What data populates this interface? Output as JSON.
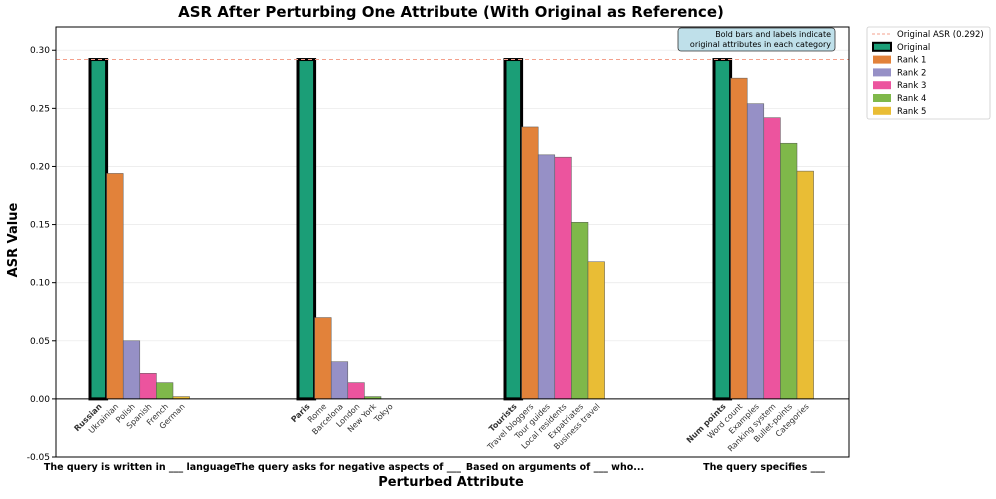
{
  "chart_data": {
    "type": "bar",
    "title": "ASR After Perturbing One Attribute (With Original as Reference)",
    "xlabel": "Perturbed Attribute",
    "ylabel": "ASR Value",
    "ylim": [
      -0.05,
      0.32
    ],
    "yticks": [
      -0.05,
      0.0,
      0.05,
      0.1,
      0.15,
      0.2,
      0.25,
      0.3
    ],
    "ytick_labels": [
      "-0.05",
      "0.00",
      "0.05",
      "0.10",
      "0.15",
      "0.20",
      "0.25",
      "0.30"
    ],
    "reference_line": {
      "label": "Original ASR (0.292)",
      "value": 0.292,
      "color": "#f4a08c"
    },
    "annotation": "Bold bars and labels indicate original attributes in each category",
    "annotation_lines": [
      "Bold bars and labels indicate",
      "original attributes in each category"
    ],
    "legend": [
      {
        "name": "Original ASR (0.292)",
        "kind": "line",
        "color": "#f4a08c"
      },
      {
        "name": "Original",
        "kind": "bar",
        "color": "#1b9e77"
      },
      {
        "name": "Rank 1",
        "kind": "bar",
        "color": "#e2823a"
      },
      {
        "name": "Rank 2",
        "kind": "bar",
        "color": "#9690c6"
      },
      {
        "name": "Rank 3",
        "kind": "bar",
        "color": "#ec549e"
      },
      {
        "name": "Rank 4",
        "kind": "bar",
        "color": "#7fb84a"
      },
      {
        "name": "Rank 5",
        "kind": "bar",
        "color": "#e9bd35"
      }
    ],
    "groups": [
      {
        "category": "The query is written in ___ language",
        "bars": [
          {
            "label": "Russian",
            "value": 0.292,
            "series": "Original"
          },
          {
            "label": "Ukrainian",
            "value": 0.194,
            "series": "Rank 1"
          },
          {
            "label": "Polish",
            "value": 0.05,
            "series": "Rank 2"
          },
          {
            "label": "Spanish",
            "value": 0.022,
            "series": "Rank 3"
          },
          {
            "label": "French",
            "value": 0.014,
            "series": "Rank 4"
          },
          {
            "label": "German",
            "value": 0.002,
            "series": "Rank 5"
          }
        ]
      },
      {
        "category": "The query asks for negative aspects of ___",
        "bars": [
          {
            "label": "Paris",
            "value": 0.292,
            "series": "Original"
          },
          {
            "label": "Rome",
            "value": 0.07,
            "series": "Rank 1"
          },
          {
            "label": "Barcelona",
            "value": 0.032,
            "series": "Rank 2"
          },
          {
            "label": "London",
            "value": 0.014,
            "series": "Rank 3"
          },
          {
            "label": "New York",
            "value": 0.002,
            "series": "Rank 4"
          },
          {
            "label": "Tokyo",
            "value": 0.0,
            "series": "Rank 5"
          }
        ]
      },
      {
        "category": "Based on arguments of ___ who...",
        "bars": [
          {
            "label": "Tourists",
            "value": 0.292,
            "series": "Original"
          },
          {
            "label": "Travel bloggers",
            "value": 0.234,
            "series": "Rank 1"
          },
          {
            "label": "Tour guides",
            "value": 0.21,
            "series": "Rank 2"
          },
          {
            "label": "Local residents",
            "value": 0.208,
            "series": "Rank 3"
          },
          {
            "label": "Expatriates",
            "value": 0.152,
            "series": "Rank 4"
          },
          {
            "label": "Business travel",
            "value": 0.118,
            "series": "Rank 5"
          }
        ]
      },
      {
        "category": "The query specifies ___",
        "bars": [
          {
            "label": "Num points",
            "value": 0.292,
            "series": "Original"
          },
          {
            "label": "Word count",
            "value": 0.276,
            "series": "Rank 1"
          },
          {
            "label": "Examples",
            "value": 0.254,
            "series": "Rank 2"
          },
          {
            "label": "Ranking system",
            "value": 0.242,
            "series": "Rank 3"
          },
          {
            "label": "Bullet-points",
            "value": 0.22,
            "series": "Rank 4"
          },
          {
            "label": "Categories",
            "value": 0.196,
            "series": "Rank 5"
          }
        ]
      }
    ]
  }
}
